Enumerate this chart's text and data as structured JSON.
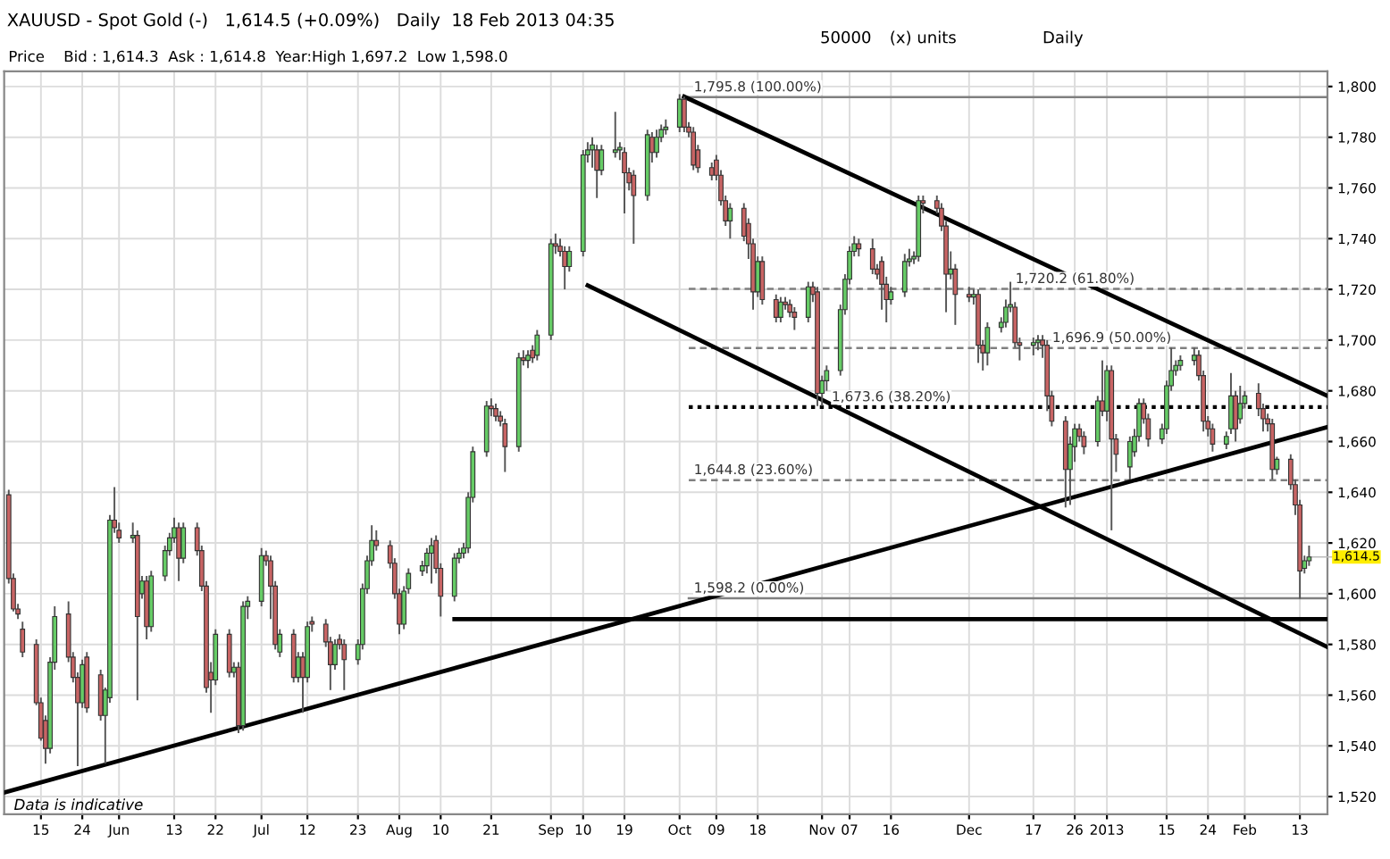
{
  "chart_data": {
    "type": "candlestick",
    "title": "XAUUSD - Spot Gold (-)   1,614.5 (+0.09%)   Daily  18 Feb 2013 04:35",
    "subtitle": "Price    Bid : 1,614.3  Ask : 1,614.8  Year:High 1,697.2  Low 1,598.0",
    "annotations": [
      "50000",
      "(x) units",
      "Daily",
      "Data is indicative",
      {
        "text": "1,614.5",
        "x": "2013-02-15",
        "y": 1614.5
      }
    ],
    "x": [
      "2012-05-08",
      "2012-05-09",
      "2012-05-10",
      "2012-05-11",
      "2012-05-14",
      "2012-05-15",
      "2012-05-16",
      "2012-05-17",
      "2012-05-18",
      "2012-05-21",
      "2012-05-22",
      "2012-05-23",
      "2012-05-24",
      "2012-05-25",
      "2012-05-28",
      "2012-05-29",
      "2012-05-30",
      "2012-05-31",
      "2012-06-01",
      "2012-06-04",
      "2012-06-05",
      "2012-06-06",
      "2012-06-07",
      "2012-06-08",
      "2012-06-11",
      "2012-06-12",
      "2012-06-13",
      "2012-06-14",
      "2012-06-15",
      "2012-06-18",
      "2012-06-19",
      "2012-06-20",
      "2012-06-21",
      "2012-06-22",
      "2012-06-25",
      "2012-06-26",
      "2012-06-27",
      "2012-06-28",
      "2012-06-29",
      "2012-07-02",
      "2012-07-03",
      "2012-07-04",
      "2012-07-05",
      "2012-07-06",
      "2012-07-09",
      "2012-07-10",
      "2012-07-11",
      "2012-07-12",
      "2012-07-13",
      "2012-07-16",
      "2012-07-17",
      "2012-07-18",
      "2012-07-19",
      "2012-07-20",
      "2012-07-23",
      "2012-07-24",
      "2012-07-25",
      "2012-07-26",
      "2012-07-27",
      "2012-07-30",
      "2012-07-31",
      "2012-08-01",
      "2012-08-02",
      "2012-08-03",
      "2012-08-06",
      "2012-08-07",
      "2012-08-08",
      "2012-08-09",
      "2012-08-10",
      "2012-08-13",
      "2012-08-14",
      "2012-08-15",
      "2012-08-16",
      "2012-08-17",
      "2012-08-20",
      "2012-08-21",
      "2012-08-22",
      "2012-08-23",
      "2012-08-24",
      "2012-08-27",
      "2012-08-28",
      "2012-08-29",
      "2012-08-30",
      "2012-08-31",
      "2012-09-03",
      "2012-09-04",
      "2012-09-05",
      "2012-09-06",
      "2012-09-07",
      "2012-09-10",
      "2012-09-11",
      "2012-09-12",
      "2012-09-13",
      "2012-09-14",
      "2012-09-17",
      "2012-09-18",
      "2012-09-19",
      "2012-09-20",
      "2012-09-21",
      "2012-09-24",
      "2012-09-25",
      "2012-09-26",
      "2012-09-27",
      "2012-09-28",
      "2012-10-01",
      "2012-10-02",
      "2012-10-03",
      "2012-10-04",
      "2012-10-05",
      "2012-10-08",
      "2012-10-09",
      "2012-10-10",
      "2012-10-11",
      "2012-10-12",
      "2012-10-15",
      "2012-10-16",
      "2012-10-17",
      "2012-10-18",
      "2012-10-19",
      "2012-10-22",
      "2012-10-23",
      "2012-10-24",
      "2012-10-25",
      "2012-10-26",
      "2012-10-29",
      "2012-10-30",
      "2012-10-31",
      "2012-11-01",
      "2012-11-02",
      "2012-11-05",
      "2012-11-06",
      "2012-11-07",
      "2012-11-08",
      "2012-11-09",
      "2012-11-12",
      "2012-11-13",
      "2012-11-14",
      "2012-11-15",
      "2012-11-16",
      "2012-11-19",
      "2012-11-20",
      "2012-11-21",
      "2012-11-22",
      "2012-11-23",
      "2012-11-26",
      "2012-11-27",
      "2012-11-28",
      "2012-11-29",
      "2012-11-30",
      "2012-12-03",
      "2012-12-04",
      "2012-12-05",
      "2012-12-06",
      "2012-12-07",
      "2012-12-10",
      "2012-12-11",
      "2012-12-12",
      "2012-12-13",
      "2012-12-14",
      "2012-12-17",
      "2012-12-18",
      "2012-12-19",
      "2012-12-20",
      "2012-12-21",
      "2012-12-24",
      "2012-12-25",
      "2012-12-26",
      "2012-12-27",
      "2012-12-28",
      "2012-12-31",
      "2013-01-01",
      "2013-01-02",
      "2013-01-03",
      "2013-01-04",
      "2013-01-07",
      "2013-01-08",
      "2013-01-09",
      "2013-01-10",
      "2013-01-11",
      "2013-01-14",
      "2013-01-15",
      "2013-01-16",
      "2013-01-17",
      "2013-01-18",
      "2013-01-21",
      "2013-01-22",
      "2013-01-23",
      "2013-01-24",
      "2013-01-25",
      "2013-01-28",
      "2013-01-29",
      "2013-01-30",
      "2013-01-31",
      "2013-02-01",
      "2013-02-04",
      "2013-02-05",
      "2013-02-06",
      "2013-02-07",
      "2013-02-08",
      "2013-02-11",
      "2013-02-12",
      "2013-02-13",
      "2013-02-14",
      "2013-02-15"
    ],
    "ohlc": [
      [
        1639,
        1641,
        1604,
        1606
      ],
      [
        1606,
        1608,
        1593,
        1594
      ],
      [
        1594,
        1596,
        1590,
        1592
      ],
      [
        1586,
        1589,
        1575,
        1577
      ],
      [
        1580,
        1582,
        1556,
        1557
      ],
      [
        1557,
        1559,
        1542,
        1543
      ],
      [
        1550,
        1552,
        1533,
        1539
      ],
      [
        1539,
        1575,
        1537,
        1573
      ],
      [
        1573,
        1595,
        1570,
        1591
      ],
      [
        1592,
        1597,
        1573,
        1575
      ],
      [
        1575,
        1577,
        1565,
        1567
      ],
      [
        1567,
        1569,
        1532,
        1557
      ],
      [
        1557,
        1574,
        1555,
        1572
      ],
      [
        1575,
        1577,
        1553,
        1555
      ],
      [
        1568,
        1570,
        1550,
        1552
      ],
      [
        1552,
        1563,
        1533,
        1562
      ],
      [
        1559,
        1631,
        1557,
        1629
      ],
      [
        1629,
        1642,
        1624,
        1626
      ],
      [
        1625,
        1628,
        1620,
        1622
      ],
      [
        1622,
        1628,
        1620,
        1623
      ],
      [
        1623,
        1625,
        1558,
        1591
      ],
      [
        1600,
        1607,
        1598,
        1605
      ],
      [
        1605,
        1607,
        1582,
        1587
      ],
      [
        1587,
        1609,
        1585,
        1607
      ],
      [
        1607,
        1619,
        1605,
        1617
      ],
      [
        1617,
        1624,
        1615,
        1622
      ],
      [
        1622,
        1630,
        1620,
        1626
      ],
      [
        1626,
        1628,
        1605,
        1614
      ],
      [
        1614,
        1628,
        1612,
        1626
      ],
      [
        1626,
        1628,
        1615,
        1617
      ],
      [
        1617,
        1619,
        1601,
        1603
      ],
      [
        1603,
        1605,
        1561,
        1563
      ],
      [
        1569,
        1573,
        1553,
        1566
      ],
      [
        1566,
        1586,
        1564,
        1584
      ],
      [
        1584,
        1586,
        1567,
        1569
      ],
      [
        1569,
        1573,
        1567,
        1571
      ],
      [
        1571,
        1573,
        1545,
        1548
      ],
      [
        1548,
        1597,
        1546,
        1595
      ],
      [
        1595,
        1599,
        1590,
        1597
      ],
      [
        1597,
        1618,
        1595,
        1615
      ],
      [
        1615,
        1617,
        1611,
        1613
      ],
      [
        1613,
        1615,
        1590,
        1603
      ],
      [
        1603,
        1605,
        1578,
        1580
      ],
      [
        1577,
        1586,
        1575,
        1584
      ],
      [
        1584,
        1586,
        1565,
        1567
      ],
      [
        1567,
        1577,
        1565,
        1575
      ],
      [
        1575,
        1577,
        1553,
        1567
      ],
      [
        1567,
        1589,
        1565,
        1587
      ],
      [
        1589,
        1591,
        1585,
        1588
      ],
      [
        1588,
        1590,
        1579,
        1581
      ],
      [
        1581,
        1583,
        1562,
        1572
      ],
      [
        1572,
        1582,
        1570,
        1580
      ],
      [
        1582,
        1584,
        1578,
        1580
      ],
      [
        1580,
        1582,
        1562,
        1574
      ],
      [
        1574,
        1582,
        1572,
        1580
      ],
      [
        1580,
        1604,
        1578,
        1602
      ],
      [
        1602,
        1615,
        1600,
        1613
      ],
      [
        1613,
        1627,
        1611,
        1621
      ],
      [
        1621,
        1625,
        1617,
        1619
      ],
      [
        1619,
        1621,
        1610,
        1612
      ],
      [
        1612,
        1614,
        1598,
        1600
      ],
      [
        1600,
        1602,
        1584,
        1588
      ],
      [
        1588,
        1603,
        1586,
        1601
      ],
      [
        1602,
        1610,
        1600,
        1608
      ],
      [
        1609,
        1613,
        1607,
        1611
      ],
      [
        1611,
        1618,
        1608,
        1616
      ],
      [
        1616,
        1622,
        1604,
        1619
      ],
      [
        1621,
        1623,
        1608,
        1610
      ],
      [
        1610,
        1612,
        1591,
        1599
      ],
      [
        1599,
        1616,
        1597,
        1614
      ],
      [
        1614,
        1618,
        1612,
        1616
      ],
      [
        1616,
        1620,
        1614,
        1618
      ],
      [
        1618,
        1640,
        1616,
        1638
      ],
      [
        1638,
        1658,
        1636,
        1656
      ],
      [
        1656,
        1676,
        1654,
        1674
      ],
      [
        1674,
        1677,
        1670,
        1673
      ],
      [
        1673,
        1675,
        1668,
        1670
      ],
      [
        1670,
        1672,
        1666,
        1668
      ],
      [
        1667,
        1669,
        1648,
        1658
      ],
      [
        1658,
        1695,
        1656,
        1693
      ],
      [
        1693,
        1696,
        1690,
        1692
      ],
      [
        1692,
        1696,
        1689,
        1694
      ],
      [
        1696,
        1698,
        1691,
        1693
      ],
      [
        1694,
        1704,
        1692,
        1702
      ],
      [
        1702,
        1740,
        1700,
        1738
      ],
      [
        1738,
        1742,
        1734,
        1737
      ],
      [
        1737,
        1740,
        1733,
        1735
      ],
      [
        1735,
        1737,
        1720,
        1729
      ],
      [
        1729,
        1737,
        1727,
        1735
      ],
      [
        1735,
        1775,
        1733,
        1773
      ],
      [
        1773,
        1778,
        1770,
        1775
      ],
      [
        1775,
        1780,
        1768,
        1777
      ],
      [
        1775,
        1777,
        1756,
        1767
      ],
      [
        1767,
        1777,
        1765,
        1775
      ],
      [
        1774,
        1790,
        1772,
        1775
      ],
      [
        1775,
        1778,
        1771,
        1776
      ],
      [
        1774,
        1776,
        1750,
        1766
      ],
      [
        1766,
        1768,
        1759,
        1762
      ],
      [
        1765,
        1767,
        1738,
        1757
      ],
      [
        1757,
        1783,
        1755,
        1781
      ],
      [
        1780,
        1782,
        1770,
        1774
      ],
      [
        1774,
        1783,
        1772,
        1780
      ],
      [
        1780,
        1785,
        1778,
        1783
      ],
      [
        1783,
        1787,
        1781,
        1784
      ],
      [
        1784,
        1797,
        1782,
        1795
      ],
      [
        1795,
        1796,
        1782,
        1784
      ],
      [
        1784,
        1786,
        1780,
        1782
      ],
      [
        1782,
        1784,
        1767,
        1769
      ],
      [
        1775,
        1777,
        1766,
        1768
      ],
      [
        1768,
        1770,
        1763,
        1765
      ],
      [
        1771,
        1773,
        1763,
        1765
      ],
      [
        1765,
        1767,
        1753,
        1755
      ],
      [
        1755,
        1757,
        1745,
        1747
      ],
      [
        1747,
        1754,
        1740,
        1752
      ],
      [
        1752,
        1754,
        1739,
        1741
      ],
      [
        1746,
        1748,
        1732,
        1738
      ],
      [
        1738,
        1740,
        1712,
        1719
      ],
      [
        1719,
        1733,
        1717,
        1731
      ],
      [
        1731,
        1733,
        1714,
        1716
      ],
      [
        1716,
        1718,
        1707,
        1709
      ],
      [
        1709,
        1717,
        1707,
        1715
      ],
      [
        1715,
        1717,
        1712,
        1714
      ],
      [
        1714,
        1716,
        1709,
        1711
      ],
      [
        1711,
        1713,
        1704,
        1709
      ],
      [
        1709,
        1723,
        1707,
        1721
      ],
      [
        1721,
        1723,
        1715,
        1718
      ],
      [
        1719,
        1721,
        1674,
        1679
      ],
      [
        1679,
        1686,
        1674,
        1684
      ],
      [
        1684,
        1690,
        1680,
        1688
      ],
      [
        1688,
        1714,
        1686,
        1712
      ],
      [
        1712,
        1726,
        1710,
        1724
      ],
      [
        1724,
        1737,
        1722,
        1735
      ],
      [
        1735,
        1741,
        1733,
        1738
      ],
      [
        1738,
        1740,
        1733,
        1736
      ],
      [
        1736,
        1740,
        1726,
        1728
      ],
      [
        1728,
        1730,
        1724,
        1726
      ],
      [
        1731,
        1733,
        1712,
        1722
      ],
      [
        1722,
        1725,
        1707,
        1716
      ],
      [
        1716,
        1721,
        1714,
        1719
      ],
      [
        1719,
        1734,
        1717,
        1731
      ],
      [
        1731,
        1736,
        1729,
        1732
      ],
      [
        1732,
        1735,
        1730,
        1733
      ],
      [
        1733,
        1757,
        1731,
        1755
      ],
      [
        1755,
        1757,
        1750,
        1754
      ],
      [
        1755,
        1757,
        1750,
        1752
      ],
      [
        1752,
        1754,
        1743,
        1745
      ],
      [
        1745,
        1747,
        1711,
        1726
      ],
      [
        1726,
        1735,
        1724,
        1728
      ],
      [
        1728,
        1730,
        1706,
        1718
      ],
      [
        1718,
        1721,
        1715,
        1717
      ],
      [
        1717,
        1720,
        1714,
        1718
      ],
      [
        1718,
        1720,
        1691,
        1698
      ],
      [
        1698,
        1700,
        1688,
        1695
      ],
      [
        1695,
        1707,
        1690,
        1705
      ],
      [
        1705,
        1709,
        1703,
        1707
      ],
      [
        1707,
        1716,
        1705,
        1713
      ],
      [
        1713,
        1723,
        1711,
        1714
      ],
      [
        1713,
        1715,
        1697,
        1699
      ],
      [
        1699,
        1701,
        1692,
        1698
      ],
      [
        1698,
        1701,
        1694,
        1699
      ],
      [
        1699,
        1702,
        1696,
        1700
      ],
      [
        1700,
        1702,
        1693,
        1698
      ],
      [
        1698,
        1700,
        1672,
        1678
      ],
      [
        1678,
        1680,
        1666,
        1668
      ],
      [
        1668,
        1670,
        1634,
        1649
      ],
      [
        1649,
        1662,
        1635,
        1659
      ],
      [
        1658,
        1667,
        1652,
        1665
      ],
      [
        1665,
        1667,
        1660,
        1662
      ],
      [
        1662,
        1664,
        1655,
        1658
      ],
      [
        1660,
        1678,
        1658,
        1676
      ],
      [
        1676,
        1692,
        1670,
        1672
      ],
      [
        1672,
        1690,
        1668,
        1688
      ],
      [
        1688,
        1690,
        1625,
        1661
      ],
      [
        1661,
        1663,
        1648,
        1655
      ],
      [
        1650,
        1662,
        1645,
        1660
      ],
      [
        1656,
        1665,
        1654,
        1662
      ],
      [
        1662,
        1677,
        1660,
        1675
      ],
      [
        1675,
        1677,
        1667,
        1669
      ],
      [
        1669,
        1671,
        1658,
        1661
      ],
      [
        1661,
        1667,
        1659,
        1665
      ],
      [
        1665,
        1684,
        1663,
        1682
      ],
      [
        1682,
        1697,
        1680,
        1688
      ],
      [
        1688,
        1692,
        1686,
        1690
      ],
      [
        1690,
        1694,
        1688,
        1692
      ],
      [
        1692,
        1697,
        1690,
        1694
      ],
      [
        1694,
        1696,
        1684,
        1686
      ],
      [
        1686,
        1688,
        1664,
        1668
      ],
      [
        1668,
        1670,
        1662,
        1665
      ],
      [
        1665,
        1667,
        1656,
        1659
      ],
      [
        1659,
        1664,
        1657,
        1662
      ],
      [
        1665,
        1687,
        1663,
        1678
      ],
      [
        1678,
        1680,
        1660,
        1665
      ],
      [
        1669,
        1682,
        1667,
        1675
      ],
      [
        1675,
        1680,
        1673,
        1678
      ],
      [
        1679,
        1683,
        1670,
        1673
      ],
      [
        1673,
        1675,
        1664,
        1669
      ],
      [
        1669,
        1671,
        1664,
        1667
      ],
      [
        1667,
        1669,
        1645,
        1649
      ],
      [
        1649,
        1654,
        1647,
        1653
      ],
      [
        1653,
        1655,
        1641,
        1643
      ],
      [
        1643,
        1645,
        1631,
        1635
      ],
      [
        1635,
        1637,
        1598,
        1609
      ],
      [
        1610,
        1615,
        1608,
        1613
      ],
      [
        1613,
        1619,
        1611,
        1614.5
      ]
    ],
    "colors": [
      "#c86464",
      "#c86464",
      "#c86464",
      "#c86464",
      "#c86464",
      "#c86464",
      "#c86464",
      "#66cc66",
      "#66cc66",
      "#c86464",
      "#c86464",
      "#c86464",
      "#66cc66",
      "#c86464",
      "#c86464",
      "#66cc66",
      "#66cc66",
      "#c86464",
      "#c86464",
      "#66cc66",
      "#c86464",
      "#66cc66",
      "#c86464",
      "#66cc66",
      "#66cc66",
      "#66cc66",
      "#66cc66",
      "#c86464",
      "#66cc66",
      "#c86464",
      "#c86464",
      "#c86464",
      "#c86464",
      "#66cc66",
      "#c86464",
      "#66cc66",
      "#c86464",
      "#66cc66",
      "#66cc66",
      "#66cc66",
      "#c86464",
      "#c86464",
      "#c86464",
      "#66cc66",
      "#c86464",
      "#66cc66",
      "#c86464",
      "#66cc66",
      "#c86464",
      "#c86464",
      "#c86464",
      "#66cc66",
      "#c86464",
      "#c86464",
      "#66cc66",
      "#66cc66",
      "#66cc66",
      "#66cc66",
      "#c86464",
      "#c86464",
      "#c86464",
      "#c86464",
      "#66cc66",
      "#66cc66",
      "#66cc66",
      "#66cc66",
      "#66cc66",
      "#c86464",
      "#c86464",
      "#66cc66",
      "#66cc66",
      "#66cc66",
      "#66cc66",
      "#66cc66",
      "#66cc66",
      "#c86464",
      "#c86464",
      "#c86464",
      "#c86464",
      "#66cc66",
      "#c86464",
      "#66cc66",
      "#c86464",
      "#66cc66",
      "#66cc66",
      "#c86464",
      "#c86464",
      "#c86464",
      "#66cc66",
      "#66cc66",
      "#66cc66",
      "#66cc66",
      "#c86464",
      "#66cc66",
      "#66cc66",
      "#66cc66",
      "#c86464",
      "#c86464",
      "#c86464",
      "#66cc66",
      "#c86464",
      "#66cc66",
      "#66cc66",
      "#66cc66",
      "#66cc66",
      "#c86464",
      "#c86464",
      "#c86464",
      "#c86464",
      "#c86464",
      "#c86464",
      "#c86464",
      "#c86464",
      "#66cc66",
      "#c86464",
      "#c86464",
      "#c86464",
      "#66cc66",
      "#c86464",
      "#c86464",
      "#66cc66",
      "#c86464",
      "#c86464",
      "#c86464",
      "#66cc66",
      "#c86464",
      "#c86464",
      "#66cc66",
      "#66cc66",
      "#66cc66",
      "#66cc66",
      "#66cc66",
      "#66cc66",
      "#c86464",
      "#c86464",
      "#c86464",
      "#c86464",
      "#c86464",
      "#66cc66",
      "#66cc66",
      "#66cc66",
      "#66cc66",
      "#66cc66",
      "#c86464",
      "#c86464",
      "#c86464",
      "#c86464",
      "#66cc66",
      "#c86464",
      "#c86464",
      "#66cc66",
      "#c86464",
      "#c86464",
      "#66cc66",
      "#66cc66",
      "#66cc66",
      "#66cc66",
      "#c86464",
      "#c86464",
      "#66cc66",
      "#66cc66",
      "#c86464",
      "#c86464",
      "#c86464",
      "#c86464",
      "#66cc66",
      "#66cc66",
      "#c86464",
      "#c86464",
      "#66cc66",
      "#c86464",
      "#66cc66",
      "#c86464",
      "#c86464",
      "#66cc66",
      "#66cc66",
      "#66cc66",
      "#c86464",
      "#c86464",
      "#66cc66",
      "#66cc66",
      "#66cc66",
      "#66cc66",
      "#66cc66",
      "#66cc66",
      "#c86464",
      "#c86464",
      "#c86464",
      "#c86464",
      "#66cc66",
      "#66cc66",
      "#c86464",
      "#66cc66",
      "#66cc66",
      "#c86464",
      "#c86464",
      "#c86464",
      "#c86464",
      "#66cc66",
      "#c86464",
      "#c86464",
      "#c86464",
      "#66cc66",
      "#66cc66"
    ],
    "series": [
      {
        "type": "line",
        "name": "1,795.8 (100.00%)",
        "color": "#808080",
        "line_style": "solid",
        "x": [
          "2012-10-03",
          "2013-02-19"
        ],
        "values": [
          1795.8,
          1795.8
        ]
      },
      {
        "type": "line",
        "name": "1,720.2 (61.80%)",
        "color": "#808080",
        "line_style": "dashed",
        "x": [
          "2012-10-03",
          "2013-02-19"
        ],
        "values": [
          1720.2,
          1720.2
        ]
      },
      {
        "type": "line",
        "name": "1,696.9 (50.00%)",
        "color": "#808080",
        "line_style": "dashed",
        "x": [
          "2012-10-03",
          "2013-02-19"
        ],
        "values": [
          1696.9,
          1696.9
        ]
      },
      {
        "type": "line",
        "name": "1,673.6 (38.20%)",
        "color": "#000000",
        "line_style": "dotted",
        "x": [
          "2012-10-03",
          "2013-02-19"
        ],
        "values": [
          1673.6,
          1673.6
        ]
      },
      {
        "type": "line",
        "name": "1,644.8 (23.60%)",
        "color": "#808080",
        "line_style": "dashed",
        "x": [
          "2012-10-03",
          "2013-02-19"
        ],
        "values": [
          1644.8,
          1644.8
        ]
      },
      {
        "type": "line",
        "name": "1,598.2 (0.00%)",
        "color": "#808080",
        "line_style": "solid",
        "x": [
          "2012-10-03",
          "2013-02-19"
        ],
        "values": [
          1598.2,
          1598.2
        ]
      },
      {
        "type": "line",
        "color": "#000000",
        "line_style": "solid",
        "x": [
          "2012-10-02",
          "2013-02-19"
        ],
        "values": [
          1796,
          1678
        ]
      },
      {
        "type": "line",
        "color": "#000000",
        "line_style": "solid",
        "x": [
          "2012-09-11",
          "2013-02-19"
        ],
        "values": [
          1721.6,
          1579
        ]
      },
      {
        "type": "line",
        "color": "#000000",
        "line_style": "solid",
        "x": [
          "2012-05-07",
          "2013-02-19"
        ],
        "values": [
          1521.6,
          1665.7
        ]
      },
      {
        "type": "line",
        "color": "#000000",
        "line_style": "solid",
        "x": [
          "2012-08-13",
          "2013-02-19"
        ],
        "values": [
          1590,
          1590
        ]
      }
    ],
    "xlim": [
      "2012-05-07",
      "2013-02-19"
    ],
    "xticks": [
      {
        "value": "2012-05-15",
        "label": "15"
      },
      {
        "value": "2012-05-24",
        "label": "24"
      },
      {
        "value": "2012-06-01",
        "label": "Jun"
      },
      {
        "value": "2012-06-13",
        "label": "13"
      },
      {
        "value": "2012-06-22",
        "label": "22"
      },
      {
        "value": "2012-07-02",
        "label": "Jul"
      },
      {
        "value": "2012-07-12",
        "label": "12"
      },
      {
        "value": "2012-07-23",
        "label": "23"
      },
      {
        "value": "2012-08-01",
        "label": "Aug"
      },
      {
        "value": "2012-08-10",
        "label": "10"
      },
      {
        "value": "2012-08-21",
        "label": "21"
      },
      {
        "value": "2012-09-03",
        "label": "Sep"
      },
      {
        "value": "2012-09-10",
        "label": "10"
      },
      {
        "value": "2012-09-19",
        "label": "19"
      },
      {
        "value": "2012-10-01",
        "label": "Oct"
      },
      {
        "value": "2012-10-09",
        "label": "09"
      },
      {
        "value": "2012-10-18",
        "label": "18"
      },
      {
        "value": "2012-11-01",
        "label": "Nov"
      },
      {
        "value": "2012-11-07",
        "label": "07"
      },
      {
        "value": "2012-11-16",
        "label": "16"
      },
      {
        "value": "2012-12-03",
        "label": "Dec"
      },
      {
        "value": "2012-12-17",
        "label": "17"
      },
      {
        "value": "2012-12-26",
        "label": "26"
      },
      {
        "value": "2013-01-02",
        "label": "2013"
      },
      {
        "value": "2013-01-15",
        "label": "15"
      },
      {
        "value": "2013-01-24",
        "label": "24"
      },
      {
        "value": "2013-02-01",
        "label": "Feb"
      },
      {
        "value": "2013-02-13",
        "label": "13"
      }
    ],
    "ylim": [
      1513,
      1806
    ],
    "yticks": [
      {
        "value": 1520,
        "label": "1,520"
      },
      {
        "value": 1540,
        "label": "1,540"
      },
      {
        "value": 1560,
        "label": "1,560"
      },
      {
        "value": 1580,
        "label": "1,580"
      },
      {
        "value": 1600,
        "label": "1,600"
      },
      {
        "value": 1620,
        "label": "1,620"
      },
      {
        "value": 1640,
        "label": "1,640"
      },
      {
        "value": 1660,
        "label": "1,660"
      },
      {
        "value": 1680,
        "label": "1,680"
      },
      {
        "value": 1700,
        "label": "1,700"
      },
      {
        "value": 1720,
        "label": "1,720"
      },
      {
        "value": 1740,
        "label": "1,740"
      },
      {
        "value": 1760,
        "label": "1,760"
      },
      {
        "value": 1780,
        "label": "1,780"
      },
      {
        "value": 1800,
        "label": "1,800"
      }
    ],
    "grid": true
  }
}
